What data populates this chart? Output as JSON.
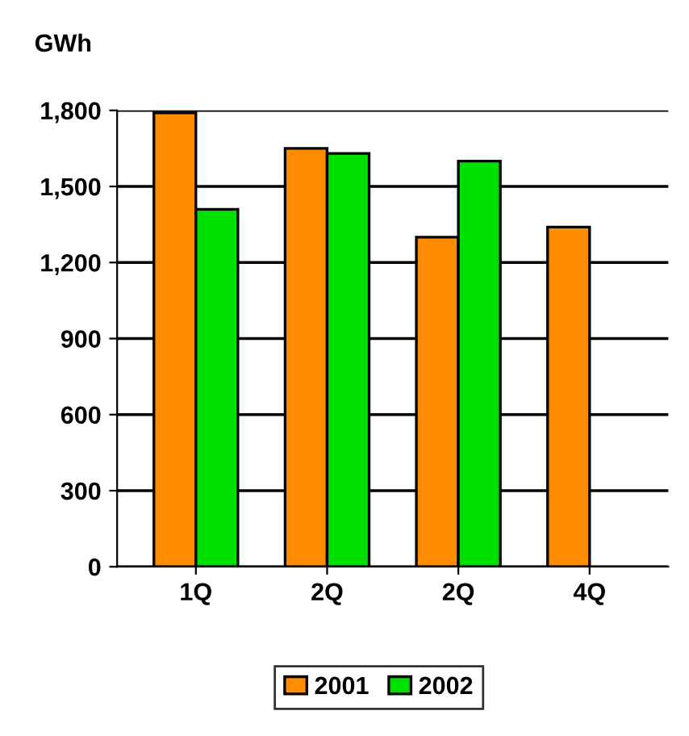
{
  "chart_data": {
    "type": "bar",
    "ylabel": "GWh",
    "categories": [
      "1Q",
      "2Q",
      "2Q",
      "4Q"
    ],
    "series": [
      {
        "name": "2001",
        "color": "#ff8c00",
        "values": [
          1790,
          1650,
          1300,
          1340
        ]
      },
      {
        "name": "2002",
        "color": "#00e000",
        "values": [
          1410,
          1630,
          1600,
          null
        ]
      }
    ],
    "ylim": [
      0,
      1800
    ],
    "yticks": [
      {
        "value": 0,
        "label": "0"
      },
      {
        "value": 300,
        "label": "300"
      },
      {
        "value": 600,
        "label": "600"
      },
      {
        "value": 900,
        "label": "900"
      },
      {
        "value": 1200,
        "label": "1,200"
      },
      {
        "value": 1500,
        "label": "1,500"
      },
      {
        "value": 1800,
        "label": "1,800"
      }
    ],
    "grid": "y",
    "legend": "bottom"
  }
}
